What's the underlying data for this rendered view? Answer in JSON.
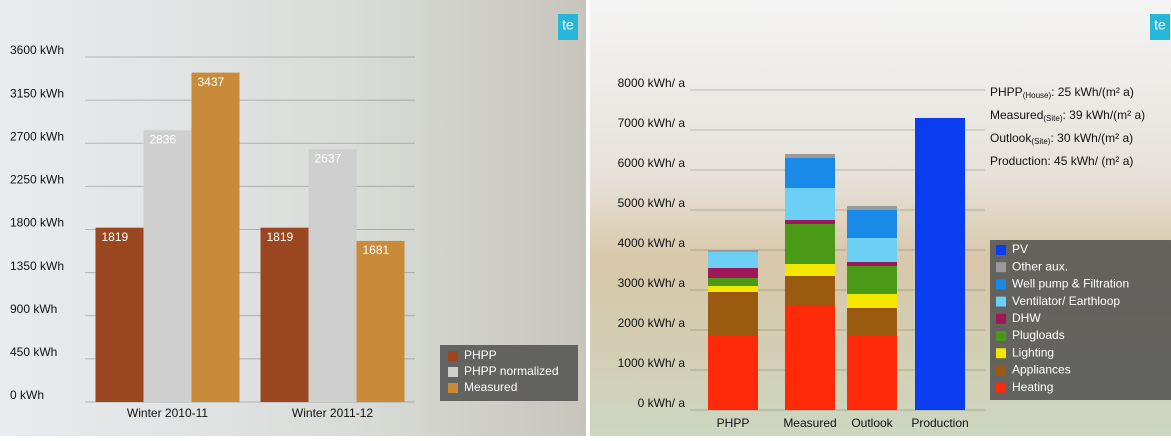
{
  "chart_data": [
    {
      "type": "bar",
      "categories": [
        "Winter 2010-11",
        "Winter 2011-12"
      ],
      "series": [
        {
          "name": "PHPP",
          "color": "#9a4620",
          "values": [
            1819,
            1819
          ]
        },
        {
          "name": "PHPP normalized",
          "color": "#cfcfcf",
          "values": [
            2836,
            2637
          ]
        },
        {
          "name": "Measured",
          "color": "#c98a3a",
          "values": [
            3437,
            1681
          ]
        }
      ],
      "ylim": [
        0,
        3600
      ],
      "yticks": [
        {
          "value": 0,
          "label": "0 kWh"
        },
        {
          "value": 450,
          "label": "450 kWh"
        },
        {
          "value": 900,
          "label": "900 kWh"
        },
        {
          "value": 1350,
          "label": "1350 kWh"
        },
        {
          "value": 1800,
          "label": "1800 kWh"
        },
        {
          "value": 2250,
          "label": "2250 kWh"
        },
        {
          "value": 2700,
          "label": "2700 kWh"
        },
        {
          "value": 3150,
          "label": "3150 kWh"
        },
        {
          "value": 3600,
          "label": "3600 kWh"
        }
      ],
      "grid": true,
      "legend": "bottom-right",
      "logo": "te"
    },
    {
      "type": "stacked_bar",
      "categories": [
        "PHPP",
        "Measured",
        "Outlook",
        "Production"
      ],
      "series": [
        {
          "name": "Heating",
          "color": "#ff2a0a",
          "values": [
            1850,
            2600,
            1850,
            0
          ]
        },
        {
          "name": "Appliances",
          "color": "#9a5a10",
          "values": [
            1100,
            750,
            700,
            0
          ]
        },
        {
          "name": "Lighting",
          "color": "#f5e600",
          "values": [
            150,
            300,
            350,
            0
          ]
        },
        {
          "name": "Plugloads",
          "color": "#4a9a18",
          "values": [
            200,
            1000,
            700,
            0
          ]
        },
        {
          "name": "DHW",
          "color": "#a0185a",
          "values": [
            250,
            100,
            100,
            0
          ]
        },
        {
          "name": "Ventilator/ Earthloop",
          "color": "#6cd0f5",
          "values": [
            400,
            800,
            600,
            0
          ]
        },
        {
          "name": "Well pump & Filtration",
          "color": "#1a8ae8",
          "values": [
            0,
            750,
            700,
            0
          ]
        },
        {
          "name": "Other aux.",
          "color": "#9a9a9a",
          "values": [
            50,
            100,
            100,
            0
          ]
        },
        {
          "name": "PV",
          "color": "#0a3cf0",
          "values": [
            0,
            0,
            0,
            7300
          ]
        }
      ],
      "ylim": [
        0,
        8000
      ],
      "yticks": [
        {
          "value": 0,
          "label": "0 kWh/ a"
        },
        {
          "value": 1000,
          "label": "1000 kWh/ a"
        },
        {
          "value": 2000,
          "label": "2000 kWh/ a"
        },
        {
          "value": 3000,
          "label": "3000 kWh/ a"
        },
        {
          "value": 4000,
          "label": "4000 kWh/ a"
        },
        {
          "value": 5000,
          "label": "5000 kWh/ a"
        },
        {
          "value": 6000,
          "label": "6000 kWh/ a"
        },
        {
          "value": 7000,
          "label": "7000 kWh/ a"
        },
        {
          "value": 8000,
          "label": "8000 kWh/ a"
        }
      ],
      "grid": true,
      "legend": "right",
      "logo": "te",
      "annotations": [
        {
          "label": "PHPP",
          "sub": "(House)",
          "text": ": 25 kWh/(m² a)"
        },
        {
          "label": "Measured",
          "sub": "(Site)",
          "text": ": 39 kWh/(m² a)"
        },
        {
          "label": "Outlook",
          "sub": "(Site)",
          "text": ": 30 kWh/(m² a)"
        },
        {
          "label": "Production",
          "sub": "",
          "text": ": 45 kWh/ (m² a)"
        }
      ]
    }
  ]
}
